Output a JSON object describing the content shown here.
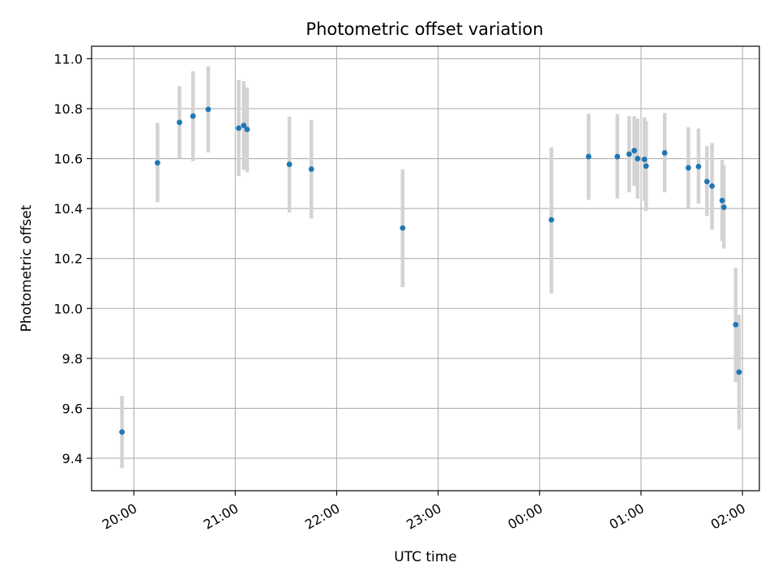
{
  "chart_data": {
    "type": "scatter",
    "title": "Photometric offset variation",
    "xlabel": "UTC time",
    "ylabel": "Photometric offset",
    "x_axis_kind": "time",
    "x_start": "19:35",
    "x_end": "02:10",
    "xticks": [
      "20:00",
      "21:00",
      "22:00",
      "23:00",
      "00:00",
      "01:00",
      "02:00"
    ],
    "ylim": [
      9.27,
      11.05
    ],
    "yticks": [
      "9.4",
      "9.6",
      "9.8",
      "10.0",
      "10.2",
      "10.4",
      "10.6",
      "10.8",
      "11.0"
    ],
    "grid": true,
    "marker_color": "#1f77b4",
    "errorbar_color": "#d3d3d3",
    "points": [
      {
        "t": "19:53",
        "y": 9.505,
        "lo": 9.36,
        "hi": 9.65
      },
      {
        "t": "20:14",
        "y": 10.583,
        "lo": 10.425,
        "hi": 10.743
      },
      {
        "t": "20:27",
        "y": 10.745,
        "lo": 10.6,
        "hi": 10.89
      },
      {
        "t": "20:35",
        "y": 10.77,
        "lo": 10.59,
        "hi": 10.95
      },
      {
        "t": "20:44",
        "y": 10.797,
        "lo": 10.625,
        "hi": 10.97
      },
      {
        "t": "21:02",
        "y": 10.722,
        "lo": 10.53,
        "hi": 10.915
      },
      {
        "t": "21:05",
        "y": 10.733,
        "lo": 10.555,
        "hi": 10.91
      },
      {
        "t": "21:07",
        "y": 10.717,
        "lo": 10.545,
        "hi": 10.885
      },
      {
        "t": "21:32",
        "y": 10.577,
        "lo": 10.385,
        "hi": 10.768
      },
      {
        "t": "21:45",
        "y": 10.558,
        "lo": 10.36,
        "hi": 10.755
      },
      {
        "t": "22:39",
        "y": 10.322,
        "lo": 10.085,
        "hi": 10.558
      },
      {
        "t": "00:07",
        "y": 10.355,
        "lo": 10.06,
        "hi": 10.645
      },
      {
        "t": "00:29",
        "y": 10.608,
        "lo": 10.435,
        "hi": 10.78
      },
      {
        "t": "00:46",
        "y": 10.608,
        "lo": 10.44,
        "hi": 10.777
      },
      {
        "t": "00:53",
        "y": 10.618,
        "lo": 10.465,
        "hi": 10.77
      },
      {
        "t": "00:56",
        "y": 10.632,
        "lo": 10.49,
        "hi": 10.77
      },
      {
        "t": "00:58",
        "y": 10.6,
        "lo": 10.44,
        "hi": 10.76
      },
      {
        "t": "01:02",
        "y": 10.597,
        "lo": 10.43,
        "hi": 10.765
      },
      {
        "t": "01:03",
        "y": 10.57,
        "lo": 10.39,
        "hi": 10.75
      },
      {
        "t": "01:14",
        "y": 10.623,
        "lo": 10.465,
        "hi": 10.783
      },
      {
        "t": "01:28",
        "y": 10.563,
        "lo": 10.4,
        "hi": 10.725
      },
      {
        "t": "01:34",
        "y": 10.568,
        "lo": 10.42,
        "hi": 10.72
      },
      {
        "t": "01:39",
        "y": 10.508,
        "lo": 10.37,
        "hi": 10.65
      },
      {
        "t": "01:42",
        "y": 10.49,
        "lo": 10.315,
        "hi": 10.663
      },
      {
        "t": "01:48",
        "y": 10.432,
        "lo": 10.27,
        "hi": 10.595
      },
      {
        "t": "01:49",
        "y": 10.405,
        "lo": 10.24,
        "hi": 10.575
      },
      {
        "t": "01:56",
        "y": 9.935,
        "lo": 9.705,
        "hi": 10.163
      },
      {
        "t": "01:58",
        "y": 9.745,
        "lo": 9.515,
        "hi": 9.975
      }
    ]
  }
}
